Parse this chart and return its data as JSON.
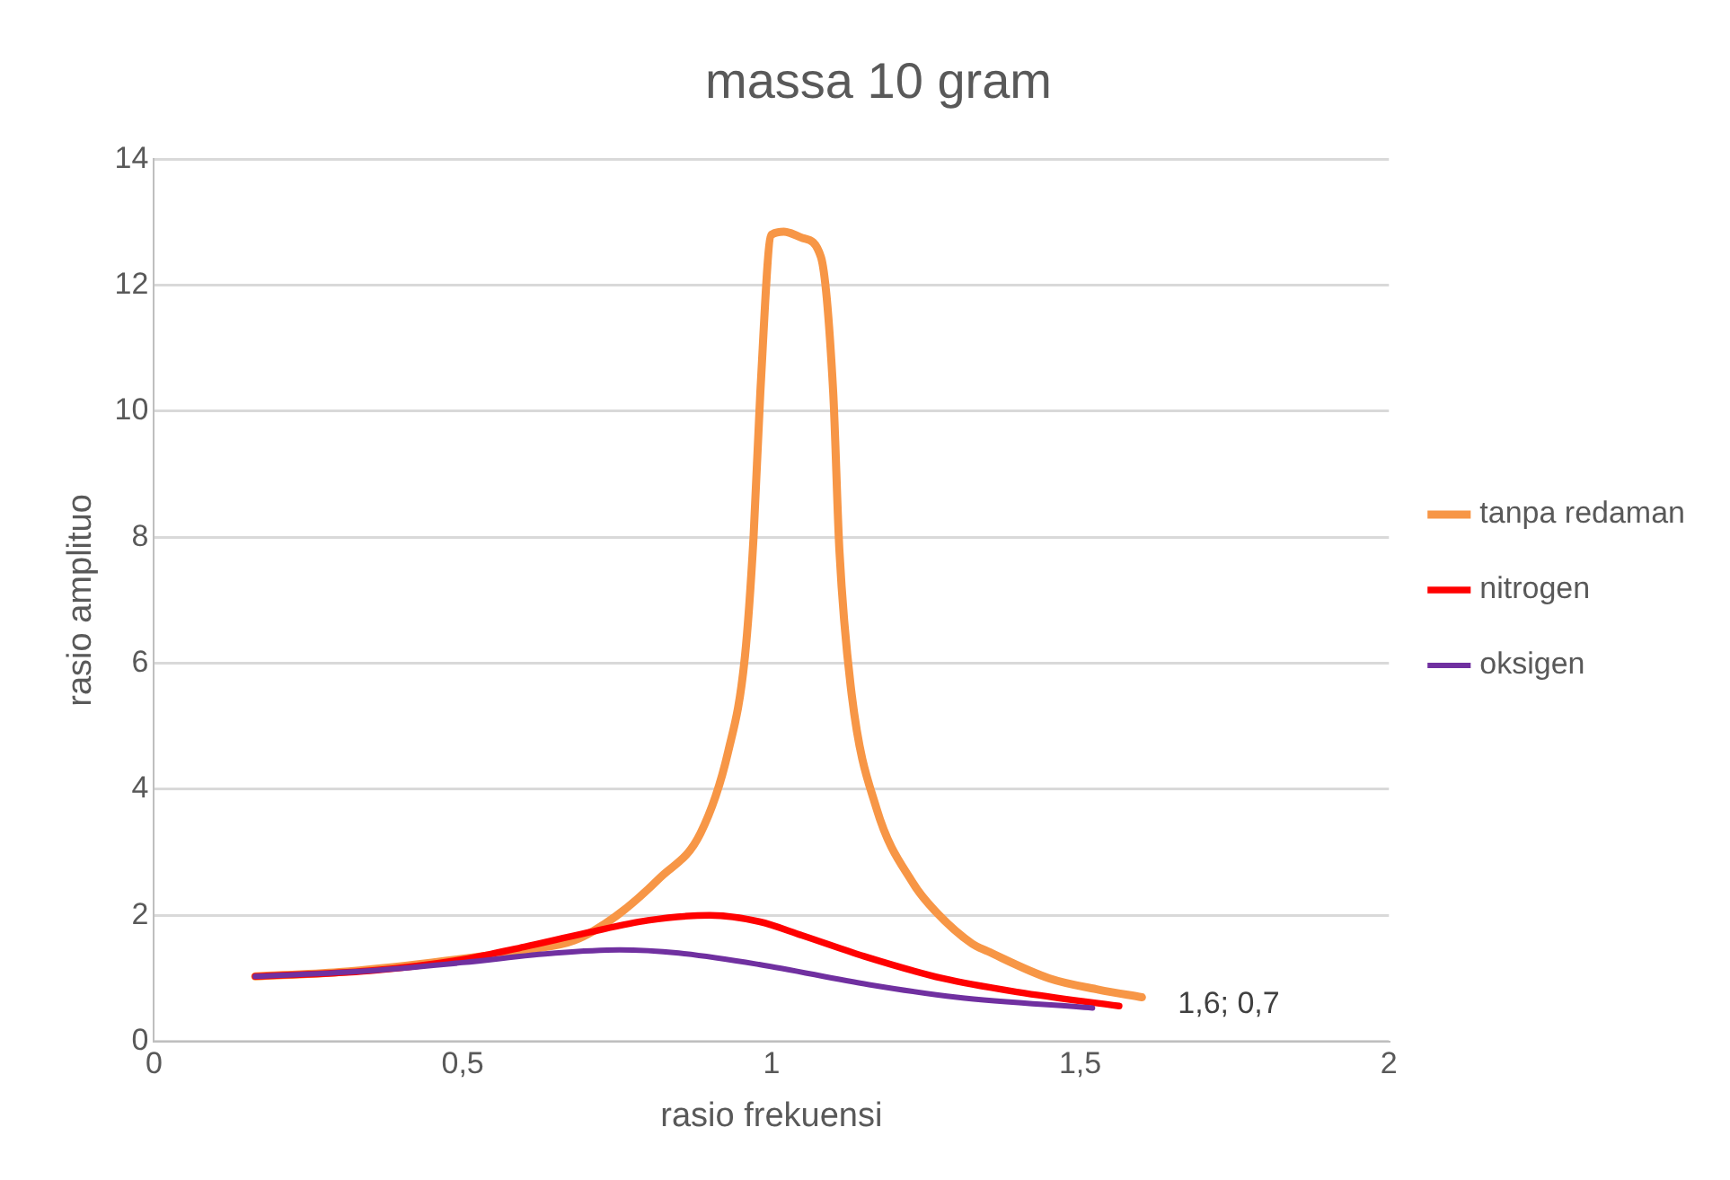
{
  "chart_data": {
    "type": "line",
    "title": "massa 10 gram",
    "xlabel": "rasio frekuensi",
    "ylabel": "rasio amplituo",
    "xlim": [
      0,
      2
    ],
    "xticks": [
      0,
      {
        "value": 0.5,
        "label": "0,5"
      },
      1,
      {
        "value": 1.5,
        "label": "1,5"
      },
      2
    ],
    "ylim": [
      0,
      14
    ],
    "yticks": [
      0,
      2,
      4,
      6,
      8,
      10,
      12,
      14
    ],
    "grid": "y",
    "legend": "right",
    "marker": "none",
    "line_style": "solid",
    "series": [
      {
        "name": "tanpa redaman",
        "color": "#f79646",
        "x": [
          0.164,
          0.3,
          0.45,
          0.6,
          0.68,
          0.75,
          0.82,
          0.885,
          0.93,
          0.957,
          0.971,
          0.982,
          1.0,
          1.02,
          1.05,
          1.08,
          1.1,
          1.11,
          1.13,
          1.17,
          1.23,
          1.265,
          1.325,
          1.35,
          1.45,
          1.53,
          1.6
        ],
        "values": [
          1.03,
          1.1,
          1.25,
          1.45,
          1.6,
          2.0,
          2.6,
          3.3,
          4.6,
          6.1,
          8.0,
          10.3,
          12.8,
          12.85,
          12.75,
          12.45,
          10.3,
          7.8,
          5.5,
          3.7,
          2.5,
          2.07,
          1.55,
          1.43,
          1.0,
          0.82,
          0.7
        ]
      },
      {
        "name": "nitrogen",
        "color": "#ff0000",
        "x": [
          0.164,
          0.35,
          0.5,
          0.6,
          0.7,
          0.8,
          0.9,
          0.98,
          1.05,
          1.15,
          1.277,
          1.4,
          1.563
        ],
        "values": [
          1.03,
          1.12,
          1.3,
          1.5,
          1.72,
          1.92,
          2.0,
          1.9,
          1.68,
          1.35,
          1.0,
          0.78,
          0.56
        ]
      },
      {
        "name": "oksigen",
        "color": "#7030a0",
        "x": [
          0.164,
          0.35,
          0.5,
          0.65,
          0.754,
          0.85,
          0.98,
          1.158,
          1.3,
          1.52
        ],
        "values": [
          1.03,
          1.12,
          1.25,
          1.4,
          1.45,
          1.4,
          1.22,
          0.9,
          0.7,
          0.53
        ]
      }
    ],
    "annotations": [
      {
        "text": "1,6; 0,7",
        "x": 1.6,
        "y": 0.7
      }
    ]
  }
}
